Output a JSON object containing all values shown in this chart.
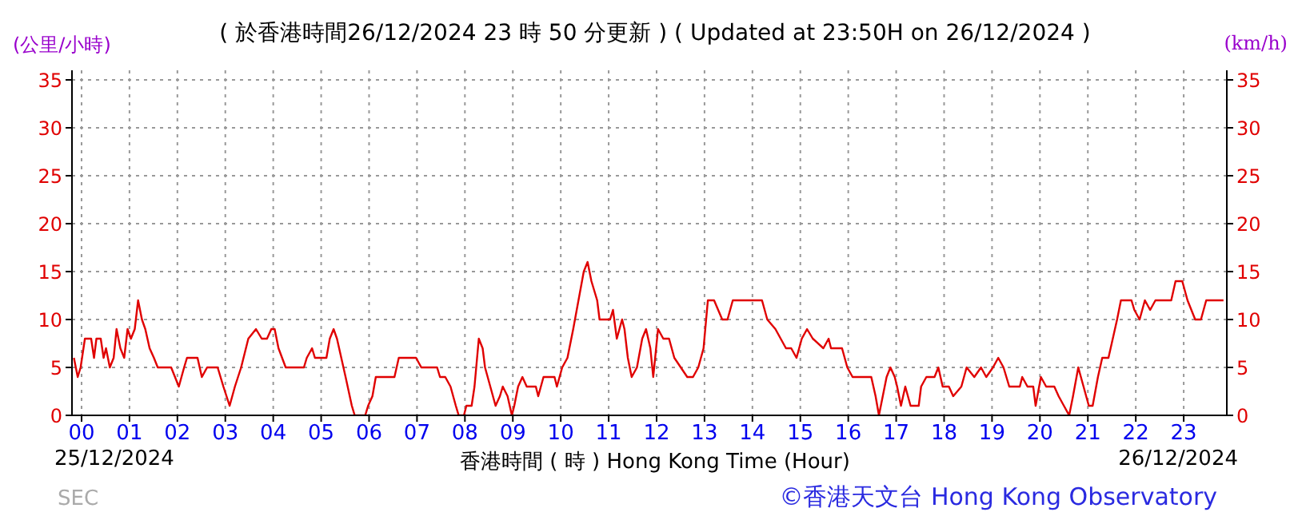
{
  "chart_data": {
    "type": "line",
    "title": "( 於香港時間26/12/2024 23 時 50 分更新 ) ( Updated at 23:50H on 26/12/2024 )",
    "xlabel": "香港時間 ( 時 ) Hong Kong Time (Hour)",
    "ylabel": "(公里/小時)",
    "y2label": "(km/h)",
    "annotations": [
      "25/12/2024",
      "26/12/2024",
      "SEC",
      "©香港天文台 Hong Kong Observatory"
    ],
    "xlim": [
      -0.2,
      23.9
    ],
    "xticks": [
      {
        "value": 0,
        "label": "00"
      },
      {
        "value": 1,
        "label": "01"
      },
      {
        "value": 2,
        "label": "02"
      },
      {
        "value": 3,
        "label": "03"
      },
      {
        "value": 4,
        "label": "04"
      },
      {
        "value": 5,
        "label": "05"
      },
      {
        "value": 6,
        "label": "06"
      },
      {
        "value": 7,
        "label": "07"
      },
      {
        "value": 8,
        "label": "08"
      },
      {
        "value": 9,
        "label": "09"
      },
      {
        "value": 10,
        "label": "10"
      },
      {
        "value": 11,
        "label": "11"
      },
      {
        "value": 12,
        "label": "12"
      },
      {
        "value": 13,
        "label": "13"
      },
      {
        "value": 14,
        "label": "14"
      },
      {
        "value": 15,
        "label": "15"
      },
      {
        "value": 16,
        "label": "16"
      },
      {
        "value": 17,
        "label": "17"
      },
      {
        "value": 18,
        "label": "18"
      },
      {
        "value": 19,
        "label": "19"
      },
      {
        "value": 20,
        "label": "20"
      },
      {
        "value": 21,
        "label": "21"
      },
      {
        "value": 22,
        "label": "22"
      },
      {
        "value": 23,
        "label": "23"
      }
    ],
    "ylim": [
      0,
      36
    ],
    "yticks": [
      0,
      5,
      10,
      15,
      20,
      25,
      30,
      35
    ],
    "y2lim": [
      0,
      36
    ],
    "y2ticks": [
      0,
      5,
      10,
      15,
      20,
      25,
      30,
      35
    ],
    "grid": true,
    "line_style": "solid",
    "series": [
      {
        "color": "#e00000",
        "x": [
          -0.16,
          -0.08,
          -0.02,
          0.07,
          0.2,
          0.26,
          0.31,
          0.4,
          0.46,
          0.51,
          0.59,
          0.67,
          0.73,
          0.81,
          0.89,
          0.96,
          1.03,
          1.11,
          1.18,
          1.26,
          1.33,
          1.42,
          1.51,
          1.59,
          1.87,
          2.03,
          2.14,
          2.2,
          2.42,
          2.51,
          2.62,
          2.84,
          2.96,
          3.09,
          3.2,
          3.33,
          3.48,
          3.64,
          3.76,
          3.87,
          3.96,
          4.03,
          4.11,
          4.26,
          4.64,
          4.7,
          4.81,
          4.87,
          5.11,
          5.18,
          5.26,
          5.33,
          5.42,
          5.51,
          5.64,
          5.7,
          5.92,
          5.98,
          6.07,
          6.14,
          6.53,
          6.62,
          6.98,
          7.09,
          7.42,
          7.48,
          7.59,
          7.7,
          7.81,
          7.87,
          7.98,
          8.03,
          8.14,
          8.2,
          8.29,
          8.37,
          8.42,
          8.53,
          8.64,
          8.73,
          8.79,
          8.89,
          8.98,
          9.03,
          9.11,
          9.2,
          9.29,
          9.48,
          9.53,
          9.64,
          9.87,
          9.92,
          10.03,
          10.14,
          10.26,
          10.37,
          10.48,
          10.56,
          10.64,
          10.76,
          10.81,
          11.03,
          11.09,
          11.17,
          11.28,
          11.33,
          11.4,
          11.48,
          11.59,
          11.7,
          11.78,
          11.87,
          11.93,
          12.03,
          12.14,
          12.26,
          12.37,
          12.64,
          12.76,
          12.87,
          12.98,
          13.07,
          13.2,
          13.37,
          13.48,
          13.59,
          14.2,
          14.31,
          14.48,
          14.7,
          14.81,
          14.92,
          15.03,
          15.14,
          15.26,
          15.48,
          15.59,
          15.64,
          15.87,
          15.98,
          16.09,
          16.2,
          16.48,
          16.57,
          16.64,
          16.72,
          16.8,
          16.88,
          16.97,
          17.02,
          17.1,
          17.19,
          17.3,
          17.47,
          17.52,
          17.63,
          17.8,
          17.88,
          17.97,
          18.1,
          18.19,
          18.36,
          18.47,
          18.63,
          18.77,
          18.88,
          19.02,
          19.13,
          19.24,
          19.36,
          19.58,
          19.63,
          19.74,
          19.86,
          19.91,
          20.02,
          20.13,
          20.3,
          20.39,
          20.5,
          20.61,
          20.69,
          20.8,
          20.91,
          21.02,
          21.1,
          21.21,
          21.3,
          21.43,
          21.52,
          21.61,
          21.69,
          21.91,
          21.97,
          22.08,
          22.19,
          22.3,
          22.41,
          22.74,
          22.83,
          22.97,
          23.08,
          23.24,
          23.36,
          23.47,
          23.83
        ],
        "values": [
          6,
          4,
          5,
          8,
          8,
          6,
          8,
          8,
          6,
          7,
          5,
          6,
          9,
          7,
          6,
          9,
          8,
          9,
          12,
          10,
          9,
          7,
          6,
          5,
          5,
          3,
          5,
          6,
          6,
          4,
          5,
          5,
          3,
          1,
          3,
          5,
          8,
          9,
          8,
          8,
          9,
          9,
          7,
          5,
          5,
          6,
          7,
          6,
          6,
          8,
          9,
          8,
          6,
          4,
          1,
          0,
          0,
          1,
          2,
          4,
          4,
          6,
          6,
          5,
          5,
          4,
          4,
          3,
          1,
          0,
          0,
          1,
          1,
          3,
          8,
          7,
          5,
          3,
          1,
          2,
          3,
          2,
          0,
          1,
          3,
          4,
          3,
          3,
          2,
          4,
          4,
          3,
          5,
          6,
          9,
          12,
          15,
          16,
          14,
          12,
          10,
          10,
          11,
          8,
          10,
          9,
          6,
          4,
          5,
          8,
          9,
          7,
          4,
          9,
          8,
          8,
          6,
          4,
          4,
          5,
          7,
          12,
          12,
          10,
          10,
          12,
          12,
          10,
          9,
          7,
          7,
          6,
          8,
          9,
          8,
          7,
          8,
          7,
          7,
          5,
          4,
          4,
          4,
          2,
          0,
          2,
          4,
          5,
          4,
          3,
          1,
          3,
          1,
          1,
          3,
          4,
          4,
          5,
          3,
          3,
          2,
          3,
          5,
          4,
          5,
          4,
          5,
          6,
          5,
          3,
          3,
          4,
          3,
          3,
          1,
          4,
          3,
          3,
          2,
          1,
          0,
          2,
          5,
          3,
          1,
          1,
          4,
          6,
          6,
          8,
          10,
          12,
          12,
          11,
          10,
          12,
          11,
          12,
          12,
          14,
          14,
          12,
          10,
          10,
          12,
          12
        ]
      }
    ]
  }
}
